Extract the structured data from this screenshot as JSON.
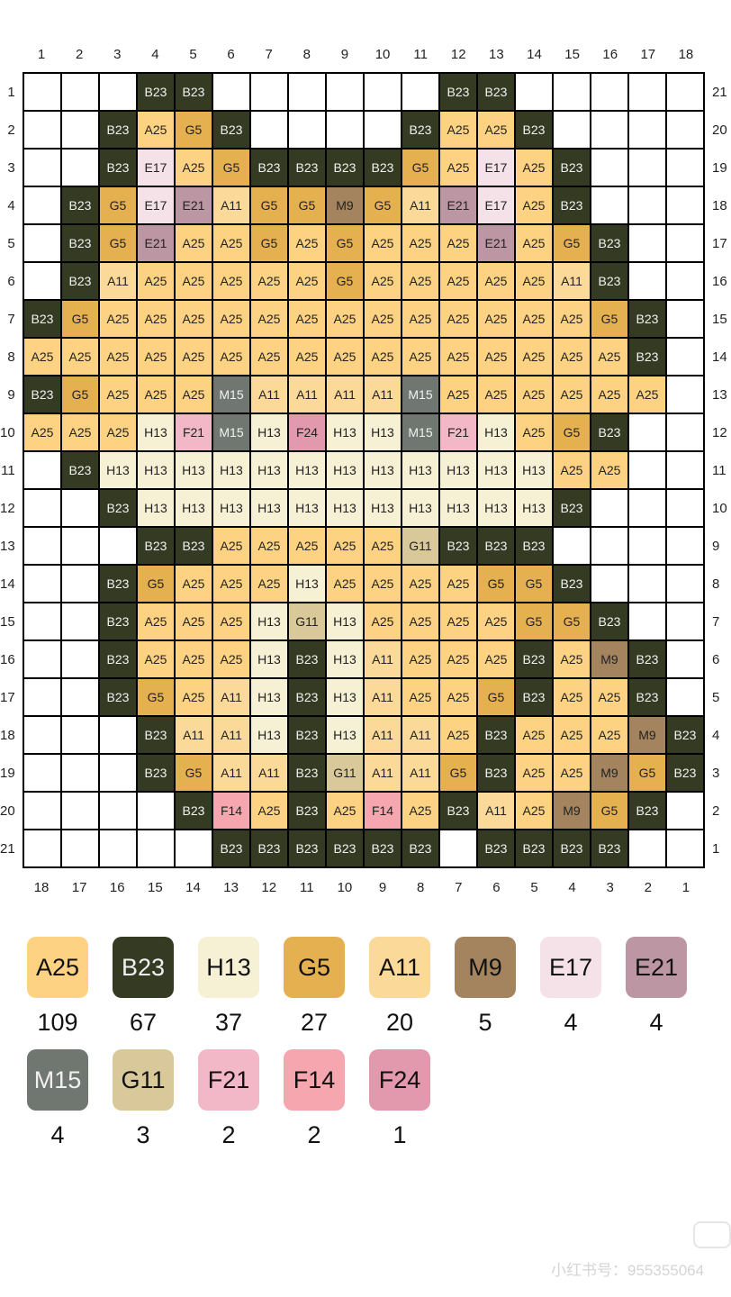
{
  "top_axis": [
    "1",
    "2",
    "3",
    "4",
    "5",
    "6",
    "7",
    "8",
    "9",
    "10",
    "11",
    "12",
    "13",
    "14",
    "15",
    "16",
    "17",
    "18"
  ],
  "bottom_axis": [
    "18",
    "17",
    "16",
    "15",
    "14",
    "13",
    "12",
    "11",
    "10",
    "9",
    "8",
    "7",
    "6",
    "5",
    "4",
    "3",
    "2",
    "1"
  ],
  "left_axis": [
    "1",
    "2",
    "3",
    "4",
    "5",
    "6",
    "7",
    "8",
    "9",
    "10",
    "11",
    "12",
    "13",
    "14",
    "15",
    "16",
    "17",
    "18",
    "19",
    "20",
    "21"
  ],
  "right_axis": [
    "21",
    "20",
    "19",
    "18",
    "17",
    "16",
    "15",
    "14",
    "13",
    "12",
    "11",
    "10",
    "9",
    "8",
    "7",
    "6",
    "5",
    "4",
    "3",
    "2",
    "1"
  ],
  "colors": {
    "A25": "#fdd282",
    "B23": "#353a22",
    "H13": "#f6f1d4",
    "G5": "#e5b04f",
    "A11": "#fbd999",
    "M9": "#a3845e",
    "E17": "#f5e2e8",
    "E21": "#bc97a3",
    "M15": "#6f7770",
    "G11": "#d9c89a",
    "F21": "#f2b8c8",
    "F14": "#f5a6ae",
    "F24": "#e399ad"
  },
  "dark_codes": [
    "B23",
    "M15"
  ],
  "grid": [
    [
      "",
      "",
      "",
      "B23",
      "B23",
      "",
      "",
      "",
      "",
      "",
      "",
      "B23",
      "B23",
      "",
      "",
      "",
      "",
      ""
    ],
    [
      "",
      "",
      "B23",
      "A25",
      "G5",
      "B23",
      "",
      "",
      "",
      "",
      "B23",
      "A25",
      "A25",
      "B23",
      "",
      "",
      "",
      ""
    ],
    [
      "",
      "",
      "B23",
      "E17",
      "A25",
      "G5",
      "B23",
      "B23",
      "B23",
      "B23",
      "G5",
      "A25",
      "E17",
      "A25",
      "B23",
      "",
      "",
      ""
    ],
    [
      "",
      "B23",
      "G5",
      "E17",
      "E21",
      "A11",
      "G5",
      "G5",
      "M9",
      "G5",
      "A11",
      "E21",
      "E17",
      "A25",
      "B23",
      "",
      "",
      ""
    ],
    [
      "",
      "B23",
      "G5",
      "E21",
      "A25",
      "A25",
      "G5",
      "A25",
      "G5",
      "A25",
      "A25",
      "A25",
      "E21",
      "A25",
      "G5",
      "B23",
      "",
      ""
    ],
    [
      "",
      "B23",
      "A11",
      "A25",
      "A25",
      "A25",
      "A25",
      "A25",
      "G5",
      "A25",
      "A25",
      "A25",
      "A25",
      "A25",
      "A11",
      "B23",
      "",
      ""
    ],
    [
      "B23",
      "G5",
      "A25",
      "A25",
      "A25",
      "A25",
      "A25",
      "A25",
      "A25",
      "A25",
      "A25",
      "A25",
      "A25",
      "A25",
      "A25",
      "G5",
      "B23",
      ""
    ],
    [
      "A25",
      "A25",
      "A25",
      "A25",
      "A25",
      "A25",
      "A25",
      "A25",
      "A25",
      "A25",
      "A25",
      "A25",
      "A25",
      "A25",
      "A25",
      "A25",
      "B23",
      ""
    ],
    [
      "B23",
      "G5",
      "A25",
      "A25",
      "A25",
      "M15",
      "A11",
      "A11",
      "A11",
      "A11",
      "M15",
      "A25",
      "A25",
      "A25",
      "A25",
      "A25",
      "A25",
      ""
    ],
    [
      "A25",
      "A25",
      "A25",
      "H13",
      "F21",
      "M15",
      "H13",
      "F24",
      "H13",
      "H13",
      "M15",
      "F21",
      "H13",
      "A25",
      "G5",
      "B23",
      "",
      ""
    ],
    [
      "",
      "B23",
      "H13",
      "H13",
      "H13",
      "H13",
      "H13",
      "H13",
      "H13",
      "H13",
      "H13",
      "H13",
      "H13",
      "H13",
      "A25",
      "A25",
      "",
      ""
    ],
    [
      "",
      "",
      "B23",
      "H13",
      "H13",
      "H13",
      "H13",
      "H13",
      "H13",
      "H13",
      "H13",
      "H13",
      "H13",
      "H13",
      "B23",
      "",
      "",
      ""
    ],
    [
      "",
      "",
      "",
      "B23",
      "B23",
      "A25",
      "A25",
      "A25",
      "A25",
      "A25",
      "G11",
      "B23",
      "B23",
      "B23",
      "",
      "",
      "",
      ""
    ],
    [
      "",
      "",
      "B23",
      "G5",
      "A25",
      "A25",
      "A25",
      "H13",
      "A25",
      "A25",
      "A25",
      "A25",
      "G5",
      "G5",
      "B23",
      "",
      "",
      ""
    ],
    [
      "",
      "",
      "B23",
      "A25",
      "A25",
      "A25",
      "H13",
      "G11",
      "H13",
      "A25",
      "A25",
      "A25",
      "A25",
      "G5",
      "G5",
      "B23",
      "",
      ""
    ],
    [
      "",
      "",
      "B23",
      "A25",
      "A25",
      "A25",
      "H13",
      "B23",
      "H13",
      "A11",
      "A25",
      "A25",
      "A25",
      "B23",
      "A25",
      "M9",
      "B23",
      ""
    ],
    [
      "",
      "",
      "B23",
      "G5",
      "A25",
      "A11",
      "H13",
      "B23",
      "H13",
      "A11",
      "A25",
      "A25",
      "G5",
      "B23",
      "A25",
      "A25",
      "B23",
      ""
    ],
    [
      "",
      "",
      "",
      "B23",
      "A11",
      "A11",
      "H13",
      "B23",
      "H13",
      "A11",
      "A11",
      "A25",
      "B23",
      "A25",
      "A25",
      "A25",
      "M9",
      "B23"
    ],
    [
      "",
      "",
      "",
      "B23",
      "G5",
      "A11",
      "A11",
      "B23",
      "G11",
      "A11",
      "A11",
      "G5",
      "B23",
      "A25",
      "A25",
      "M9",
      "G5",
      "B23"
    ],
    [
      "",
      "",
      "",
      "",
      "B23",
      "F14",
      "A25",
      "B23",
      "A25",
      "F14",
      "A25",
      "B23",
      "A11",
      "A25",
      "M9",
      "G5",
      "B23",
      ""
    ],
    [
      "",
      "",
      "",
      "",
      "",
      "B23",
      "B23",
      "B23",
      "B23",
      "B23",
      "B23",
      "",
      "B23",
      "B23",
      "B23",
      "B23",
      "",
      ""
    ]
  ],
  "legend": [
    {
      "code": "A25",
      "count": "109"
    },
    {
      "code": "B23",
      "count": "67"
    },
    {
      "code": "H13",
      "count": "37"
    },
    {
      "code": "G5",
      "count": "27"
    },
    {
      "code": "A11",
      "count": "20"
    },
    {
      "code": "M9",
      "count": "5"
    },
    {
      "code": "E17",
      "count": "4"
    },
    {
      "code": "E21",
      "count": "4"
    },
    {
      "code": "M15",
      "count": "4"
    },
    {
      "code": "G11",
      "count": "3"
    },
    {
      "code": "F21",
      "count": "2"
    },
    {
      "code": "F14",
      "count": "2"
    },
    {
      "code": "F24",
      "count": "1"
    }
  ],
  "watermark": "小红书号：955355064"
}
